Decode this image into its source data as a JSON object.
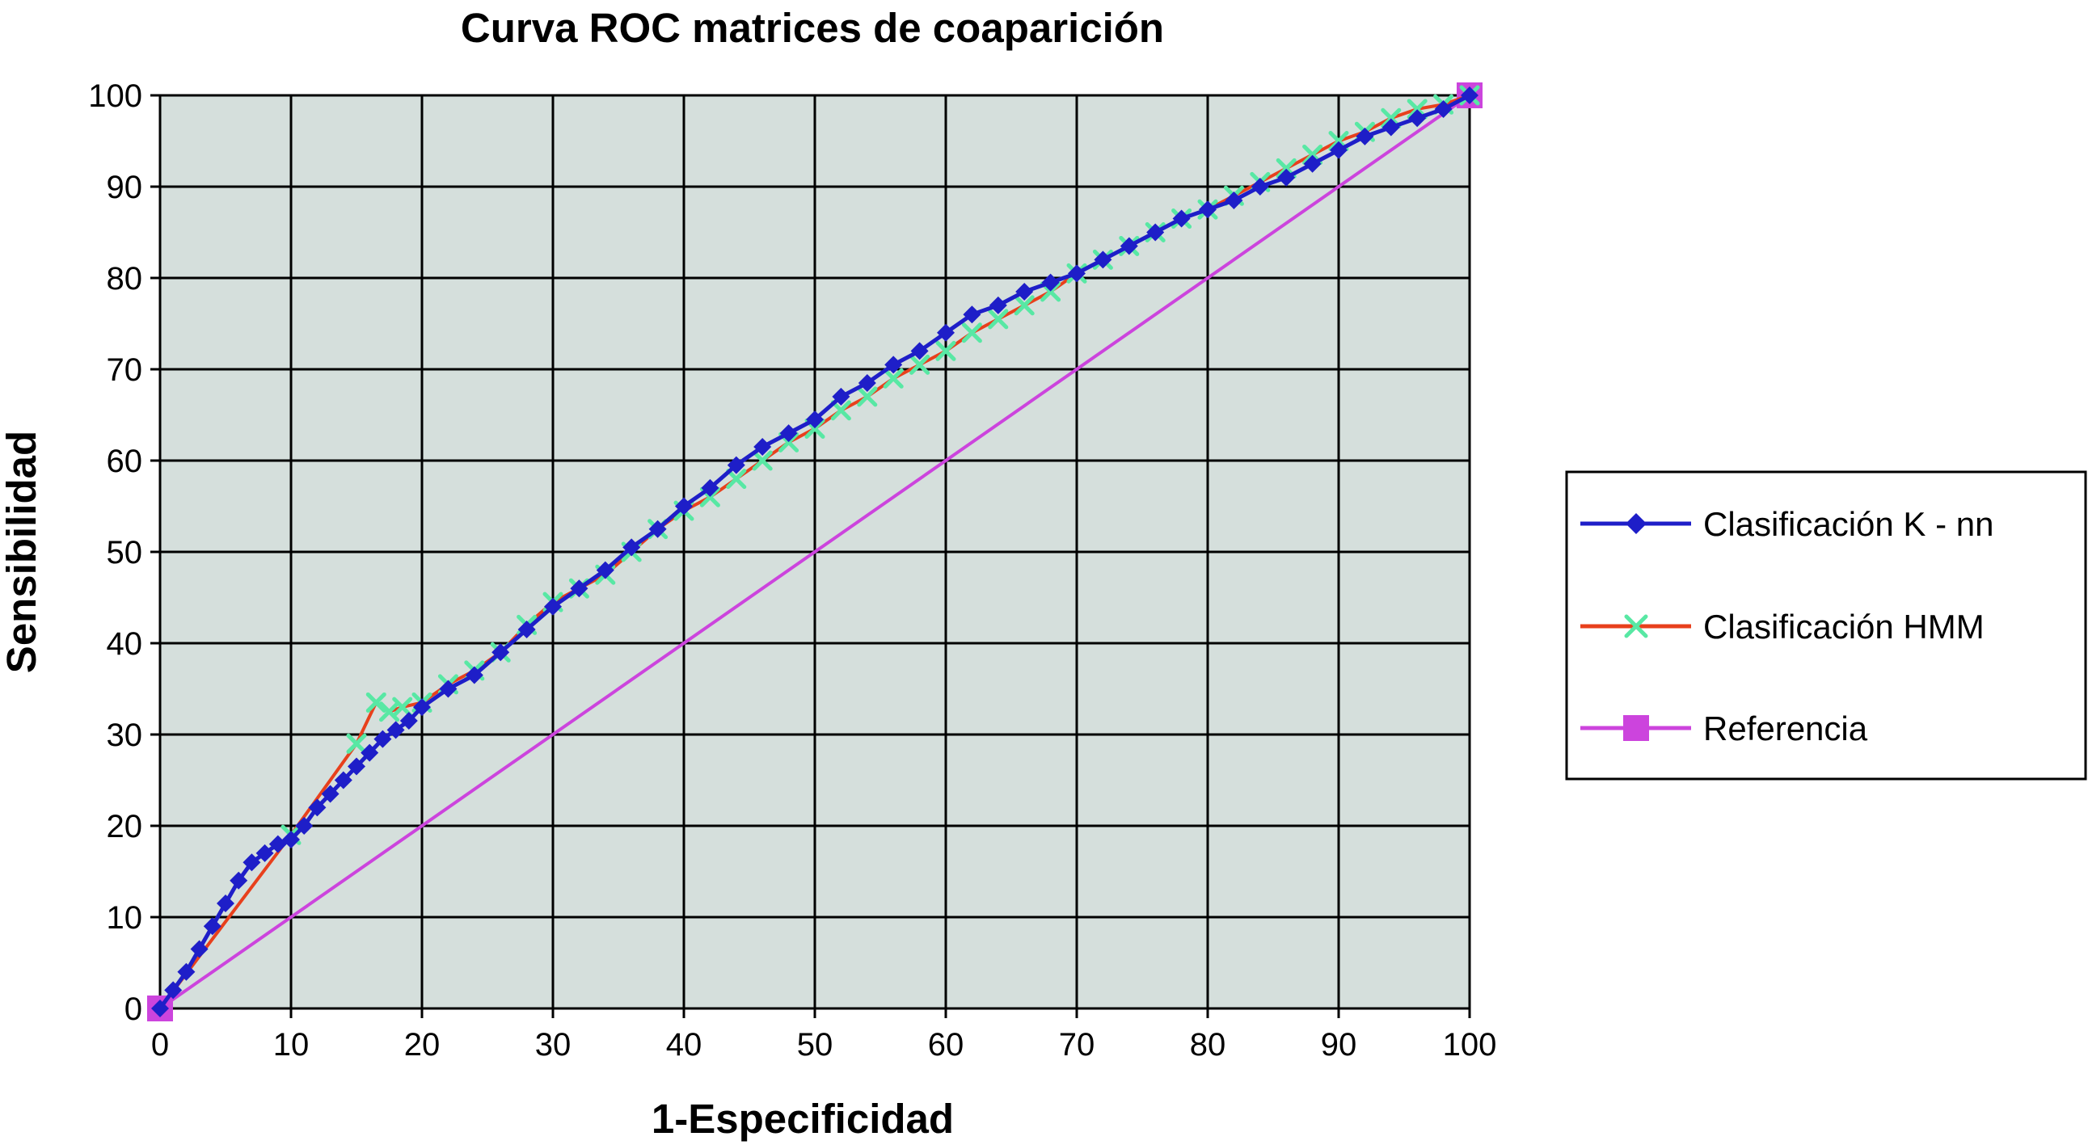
{
  "chart_data": {
    "type": "line",
    "title": "Curva ROC matrices de coaparición",
    "xlabel": "1-Especificidad",
    "ylabel": "Sensibilidad",
    "xlim": [
      0,
      100
    ],
    "ylim": [
      0,
      100
    ],
    "xticks": [
      "0",
      "10",
      "20",
      "30",
      "40",
      "50",
      "60",
      "70",
      "80",
      "90",
      "100"
    ],
    "yticks": [
      "0",
      "10",
      "20",
      "30",
      "40",
      "50",
      "60",
      "70",
      "80",
      "90",
      "100"
    ],
    "grid": true,
    "legend_position": "right",
    "plot_background": "#d5dfdc",
    "series": [
      {
        "name": "Clasificación K - nn",
        "color": "#1e1ec8",
        "marker": "diamond",
        "x": [
          0,
          1,
          2,
          3,
          4,
          5,
          6,
          7,
          8,
          9,
          10,
          11,
          12,
          13,
          14,
          15,
          16,
          17,
          18,
          19,
          20,
          22,
          24,
          26,
          28,
          30,
          32,
          34,
          36,
          38,
          40,
          42,
          44,
          46,
          48,
          50,
          52,
          54,
          56,
          58,
          60,
          62,
          64,
          66,
          68,
          70,
          72,
          74,
          76,
          78,
          80,
          82,
          84,
          86,
          88,
          90,
          92,
          94,
          96,
          98,
          100
        ],
        "y": [
          0,
          2,
          4,
          6.5,
          9,
          11.5,
          14,
          16,
          17,
          18,
          18.5,
          20,
          22,
          23.5,
          25,
          26.5,
          28,
          29.5,
          30.5,
          31.5,
          33,
          35,
          36.5,
          39,
          41.5,
          44,
          46,
          48,
          50.5,
          52.5,
          55,
          57,
          59.5,
          61.5,
          63,
          64.5,
          67,
          68.5,
          70.5,
          72,
          74,
          76,
          77,
          78.5,
          79.5,
          80.5,
          82,
          83.5,
          85,
          86.5,
          87.5,
          88.5,
          90,
          91,
          92.5,
          94,
          95.5,
          96.5,
          97.5,
          98.5,
          100
        ]
      },
      {
        "name": "Clasificación HMM",
        "line_color": "#e8401c",
        "marker_color": "#58e8a4",
        "marker": "x",
        "x": [
          0,
          10,
          15,
          16.5,
          17.5,
          18.5,
          20,
          22,
          24,
          26,
          28,
          30,
          32,
          34,
          36,
          38,
          40,
          42,
          44,
          46,
          48,
          50,
          52,
          54,
          56,
          58,
          60,
          62,
          64,
          66,
          68,
          70,
          72,
          74,
          76,
          78,
          80,
          82,
          84,
          86,
          88,
          90,
          92,
          94,
          96,
          98,
          100
        ],
        "y": [
          0,
          19,
          29,
          33.5,
          32.5,
          33,
          33.5,
          35.5,
          37,
          39,
          42,
          44.5,
          46,
          47.5,
          50,
          52.5,
          54.5,
          56,
          58,
          60,
          62,
          63.5,
          65.5,
          67,
          69,
          70.5,
          72,
          74,
          75.5,
          77,
          78.5,
          80.5,
          82,
          83.5,
          85,
          86.5,
          87.5,
          89,
          90.5,
          92,
          93.5,
          95,
          96,
          97.5,
          98.5,
          99,
          100
        ]
      },
      {
        "name": "Referencia",
        "color": "#cc44dd",
        "marker": "square",
        "x": [
          0,
          100
        ],
        "y": [
          0,
          100
        ]
      }
    ]
  }
}
